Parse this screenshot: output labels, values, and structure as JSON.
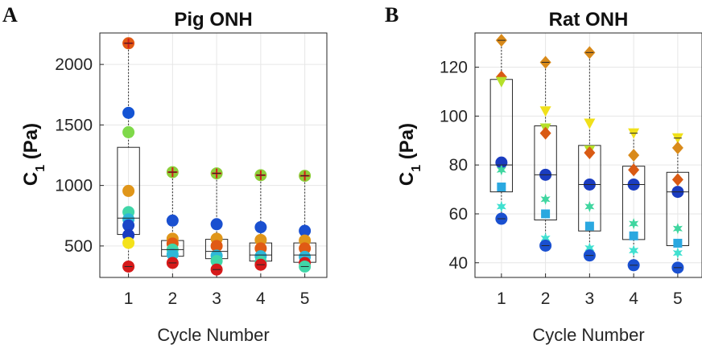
{
  "panels": [
    {
      "letter": "A",
      "title": "Pig ONH",
      "ylabel_main": "C",
      "ylabel_sub": "1",
      "ylabel_unit": " (Pa)",
      "xlabel": "Cycle Number"
    },
    {
      "letter": "B",
      "title": "Rat ONH",
      "ylabel_main": "C",
      "ylabel_sub": "1",
      "ylabel_unit": " (Pa)",
      "xlabel": "Cycle Number"
    }
  ],
  "chart_data": [
    {
      "type": "scatter",
      "title": "Pig ONH",
      "xlabel": "Cycle Number",
      "ylabel": "C1 (Pa)",
      "x_ticks": [
        1,
        2,
        3,
        4,
        5
      ],
      "y_ticks": [
        500,
        1000,
        1500,
        2000
      ],
      "xlim": [
        0.35,
        5.5
      ],
      "ylim": [
        240,
        2260
      ],
      "grid": true,
      "boxes": [
        {
          "x": 1,
          "q1": 595,
          "median": 730,
          "q3": 1315,
          "whisker_low": 330,
          "whisker_high": 2175
        },
        {
          "x": 2,
          "q1": 415,
          "median": 470,
          "q3": 545,
          "whisker_low": 360,
          "whisker_high": 1110
        },
        {
          "x": 3,
          "q1": 395,
          "median": 455,
          "q3": 555,
          "whisker_low": 305,
          "whisker_high": 1100
        },
        {
          "x": 4,
          "q1": 375,
          "median": 425,
          "q3": 525,
          "whisker_low": 345,
          "whisker_high": 1085
        },
        {
          "x": 5,
          "q1": 365,
          "median": 425,
          "q3": 525,
          "whisker_low": 330,
          "whisker_high": 1080
        }
      ],
      "points": [
        {
          "x": 1,
          "y": 2175,
          "color": "#e05a14",
          "marker": "circle-cross"
        },
        {
          "x": 1,
          "y": 1600,
          "color": "#1454d4",
          "marker": "circle"
        },
        {
          "x": 1,
          "y": 1440,
          "color": "#7fd94a",
          "marker": "circle"
        },
        {
          "x": 1,
          "y": 955,
          "color": "#e0961a",
          "marker": "circle"
        },
        {
          "x": 1,
          "y": 780,
          "color": "#40d6a8",
          "marker": "circle"
        },
        {
          "x": 1,
          "y": 720,
          "color": "#2eb8d8",
          "marker": "circle"
        },
        {
          "x": 1,
          "y": 670,
          "color": "#1a46c8",
          "marker": "circle"
        },
        {
          "x": 1,
          "y": 590,
          "color": "#1a3cc0",
          "marker": "circle"
        },
        {
          "x": 1,
          "y": 525,
          "color": "#f4e21a",
          "marker": "circle"
        },
        {
          "x": 1,
          "y": 330,
          "color": "#d61a1a",
          "marker": "circle"
        },
        {
          "x": 2,
          "y": 1110,
          "color": "#8ccf3a",
          "marker": "circle-cross"
        },
        {
          "x": 2,
          "y": 710,
          "color": "#1a50d0",
          "marker": "circle"
        },
        {
          "x": 2,
          "y": 560,
          "color": "#e0961a",
          "marker": "circle"
        },
        {
          "x": 2,
          "y": 520,
          "color": "#e05a14",
          "marker": "circle"
        },
        {
          "x": 2,
          "y": 470,
          "color": "#40d6a8",
          "marker": "circle"
        },
        {
          "x": 2,
          "y": 430,
          "color": "#2eb8d8",
          "marker": "circle"
        },
        {
          "x": 2,
          "y": 360,
          "color": "#d61a1a",
          "marker": "circle"
        },
        {
          "x": 3,
          "y": 1100,
          "color": "#8ccf3a",
          "marker": "circle-cross"
        },
        {
          "x": 3,
          "y": 680,
          "color": "#1a50d0",
          "marker": "circle"
        },
        {
          "x": 3,
          "y": 560,
          "color": "#e0961a",
          "marker": "circle"
        },
        {
          "x": 3,
          "y": 500,
          "color": "#e05a14",
          "marker": "circle"
        },
        {
          "x": 3,
          "y": 420,
          "color": "#2eb8d8",
          "marker": "circle"
        },
        {
          "x": 3,
          "y": 375,
          "color": "#40d6a8",
          "marker": "circle"
        },
        {
          "x": 3,
          "y": 305,
          "color": "#d61a1a",
          "marker": "circle"
        },
        {
          "x": 4,
          "y": 1085,
          "color": "#8ccf3a",
          "marker": "circle-cross"
        },
        {
          "x": 4,
          "y": 655,
          "color": "#1a50d0",
          "marker": "circle"
        },
        {
          "x": 4,
          "y": 550,
          "color": "#e0961a",
          "marker": "circle"
        },
        {
          "x": 4,
          "y": 480,
          "color": "#e05a14",
          "marker": "circle"
        },
        {
          "x": 4,
          "y": 415,
          "color": "#2eb8d8",
          "marker": "circle"
        },
        {
          "x": 4,
          "y": 370,
          "color": "#40d6a8",
          "marker": "circle"
        },
        {
          "x": 4,
          "y": 345,
          "color": "#d61a1a",
          "marker": "circle"
        },
        {
          "x": 5,
          "y": 1080,
          "color": "#8ccf3a",
          "marker": "circle-cross"
        },
        {
          "x": 5,
          "y": 625,
          "color": "#1a50d0",
          "marker": "circle"
        },
        {
          "x": 5,
          "y": 545,
          "color": "#e0961a",
          "marker": "circle"
        },
        {
          "x": 5,
          "y": 480,
          "color": "#e05a14",
          "marker": "circle"
        },
        {
          "x": 5,
          "y": 410,
          "color": "#2eb8d8",
          "marker": "circle"
        },
        {
          "x": 5,
          "y": 360,
          "color": "#d61a1a",
          "marker": "circle"
        },
        {
          "x": 5,
          "y": 330,
          "color": "#40d6a8",
          "marker": "circle"
        }
      ]
    },
    {
      "type": "scatter",
      "title": "Rat ONH",
      "xlabel": "Cycle Number",
      "ylabel": "C1 (Pa)",
      "x_ticks": [
        1,
        2,
        3,
        4,
        5
      ],
      "y_ticks": [
        40,
        60,
        80,
        100,
        120
      ],
      "xlim": [
        0.4,
        5.55
      ],
      "ylim": [
        34,
        134
      ],
      "grid": true,
      "boxes": [
        {
          "x": 1,
          "q1": 69,
          "median": 80,
          "q3": 115,
          "whisker_low": 58,
          "whisker_high": 131
        },
        {
          "x": 2,
          "q1": 57.5,
          "median": 76,
          "q3": 96,
          "whisker_low": 47,
          "whisker_high": 122
        },
        {
          "x": 3,
          "q1": 53,
          "median": 72,
          "q3": 88,
          "whisker_low": 43,
          "whisker_high": 126
        },
        {
          "x": 4,
          "q1": 49.5,
          "median": 72,
          "q3": 79.5,
          "whisker_low": 39,
          "whisker_high": 93
        },
        {
          "x": 5,
          "q1": 47,
          "median": 69,
          "q3": 77,
          "whisker_low": 38,
          "whisker_high": 91
        }
      ],
      "points": [
        {
          "x": 1,
          "y": 131,
          "color": "#d98a1a",
          "marker": "diamond"
        },
        {
          "x": 1,
          "y": 116,
          "color": "#d95a14",
          "marker": "diamond"
        },
        {
          "x": 1,
          "y": 114,
          "color": "#b5e02a",
          "marker": "triangle-down"
        },
        {
          "x": 1,
          "y": 81,
          "color": "#1a3cc0",
          "marker": "circle"
        },
        {
          "x": 1,
          "y": 78,
          "color": "#40d6a0",
          "marker": "star"
        },
        {
          "x": 1,
          "y": 71,
          "color": "#2aa8e0",
          "marker": "square"
        },
        {
          "x": 1,
          "y": 63,
          "color": "#40e0d0",
          "marker": "star"
        },
        {
          "x": 1,
          "y": 58,
          "color": "#1a50d0",
          "marker": "circle"
        },
        {
          "x": 2,
          "y": 122,
          "color": "#d98a1a",
          "marker": "diamond"
        },
        {
          "x": 2,
          "y": 102,
          "color": "#f0e01a",
          "marker": "triangle-down"
        },
        {
          "x": 2,
          "y": 95,
          "color": "#b5e02a",
          "marker": "triangle-down"
        },
        {
          "x": 2,
          "y": 93,
          "color": "#d95a14",
          "marker": "diamond"
        },
        {
          "x": 2,
          "y": 76,
          "color": "#1a3cc0",
          "marker": "circle"
        },
        {
          "x": 2,
          "y": 66,
          "color": "#40d6a0",
          "marker": "star"
        },
        {
          "x": 2,
          "y": 60,
          "color": "#2aa8e0",
          "marker": "square"
        },
        {
          "x": 2,
          "y": 50,
          "color": "#40e0d0",
          "marker": "star"
        },
        {
          "x": 2,
          "y": 47,
          "color": "#1a50d0",
          "marker": "circle"
        },
        {
          "x": 3,
          "y": 126,
          "color": "#d98a1a",
          "marker": "diamond"
        },
        {
          "x": 3,
          "y": 97,
          "color": "#f0e01a",
          "marker": "triangle-down"
        },
        {
          "x": 3,
          "y": 86,
          "color": "#b5e02a",
          "marker": "triangle-down"
        },
        {
          "x": 3,
          "y": 85,
          "color": "#d95a14",
          "marker": "diamond"
        },
        {
          "x": 3,
          "y": 72,
          "color": "#1a3cc0",
          "marker": "circle"
        },
        {
          "x": 3,
          "y": 63,
          "color": "#40d6a0",
          "marker": "star"
        },
        {
          "x": 3,
          "y": 55,
          "color": "#2aa8e0",
          "marker": "square"
        },
        {
          "x": 3,
          "y": 46,
          "color": "#40e0d0",
          "marker": "star"
        },
        {
          "x": 3,
          "y": 43,
          "color": "#1a50d0",
          "marker": "circle"
        },
        {
          "x": 4,
          "y": 93,
          "color": "#f0e01a",
          "marker": "triangle-down"
        },
        {
          "x": 4,
          "y": 84,
          "color": "#d98a1a",
          "marker": "diamond"
        },
        {
          "x": 4,
          "y": 78,
          "color": "#d95a14",
          "marker": "diamond"
        },
        {
          "x": 4,
          "y": 72,
          "color": "#1a3cc0",
          "marker": "circle"
        },
        {
          "x": 4,
          "y": 56,
          "color": "#40d6a0",
          "marker": "star"
        },
        {
          "x": 4,
          "y": 51,
          "color": "#2aa8e0",
          "marker": "square"
        },
        {
          "x": 4,
          "y": 45,
          "color": "#40e0d0",
          "marker": "star"
        },
        {
          "x": 4,
          "y": 39,
          "color": "#1a50d0",
          "marker": "circle"
        },
        {
          "x": 5,
          "y": 91,
          "color": "#f0e01a",
          "marker": "triangle-down"
        },
        {
          "x": 5,
          "y": 87,
          "color": "#d98a1a",
          "marker": "diamond"
        },
        {
          "x": 5,
          "y": 74,
          "color": "#d95a14",
          "marker": "diamond"
        },
        {
          "x": 5,
          "y": 69,
          "color": "#1a3cc0",
          "marker": "circle"
        },
        {
          "x": 5,
          "y": 54,
          "color": "#40d6a0",
          "marker": "star"
        },
        {
          "x": 5,
          "y": 48,
          "color": "#2aa8e0",
          "marker": "square"
        },
        {
          "x": 5,
          "y": 44,
          "color": "#40e0d0",
          "marker": "star"
        },
        {
          "x": 5,
          "y": 38,
          "color": "#1a50d0",
          "marker": "circle"
        }
      ]
    }
  ]
}
